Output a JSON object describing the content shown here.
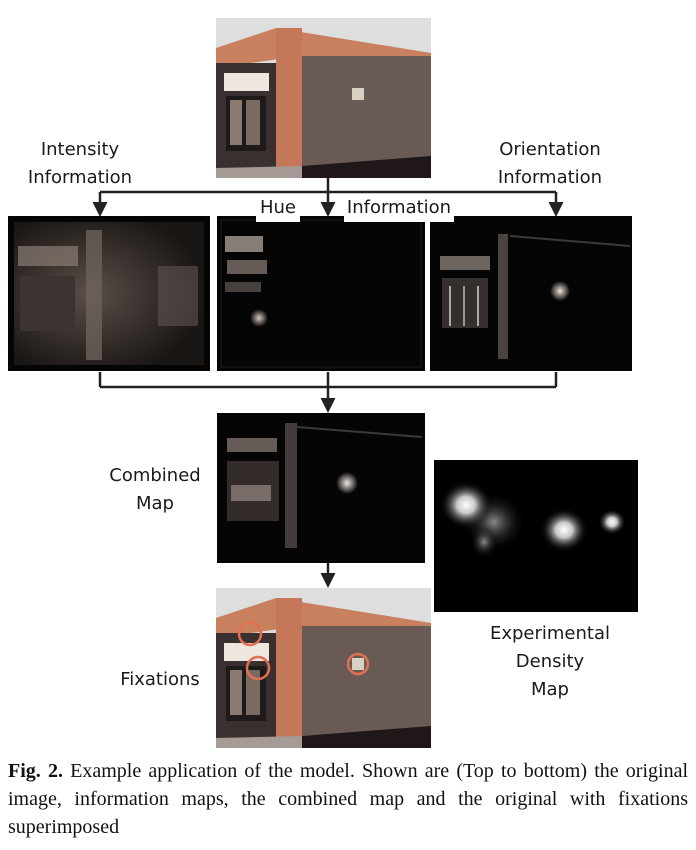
{
  "labels": {
    "intensity": [
      "Intensity",
      "Information"
    ],
    "orientation": [
      "Orientation",
      "Information"
    ],
    "hue": "Hue",
    "information": "Information",
    "combined": [
      "Combined",
      "Map"
    ],
    "fixations": "Fixations",
    "density": [
      "Experimental",
      "Density",
      "Map"
    ]
  },
  "caption": {
    "fig_label": "Fig. 2.",
    "text": "Example application of the model. Shown are (Top to bottom) the original image, information maps, the combined map and the original with fixations superimposed"
  }
}
